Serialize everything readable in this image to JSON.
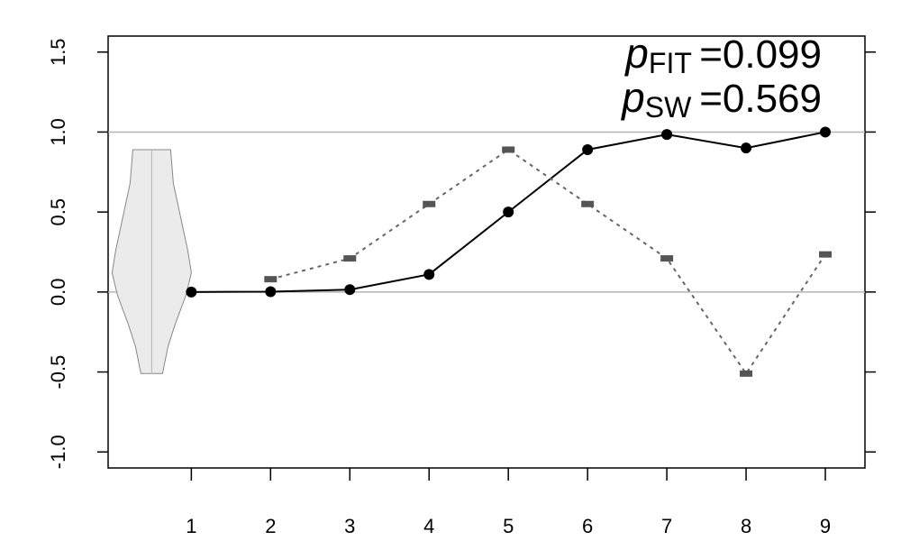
{
  "chart_data": {
    "type": "line",
    "x": [
      1,
      2,
      3,
      4,
      5,
      6,
      7,
      8,
      9
    ],
    "xlim": [
      -0.05,
      9.5
    ],
    "ylim": [
      -1.1,
      1.6
    ],
    "yticks": [
      -1.0,
      -0.5,
      0.0,
      0.5,
      1.0,
      1.5
    ],
    "ytick_labels": [
      "-1.0",
      "-0.5",
      "0.0",
      "0.5",
      "1.0",
      "1.5"
    ],
    "xticks": [
      1,
      2,
      3,
      4,
      5,
      6,
      7,
      8,
      9
    ],
    "xtick_labels": [
      "1",
      "2",
      "3",
      "4",
      "5",
      "6",
      "7",
      "8",
      "9"
    ],
    "reference_lines": [
      0.0,
      1.0
    ],
    "series": [
      {
        "style": "solid-line-with-points",
        "values": [
          0.0,
          0.002,
          0.015,
          0.11,
          0.5,
          0.89,
          0.985,
          0.9,
          1.0
        ],
        "color": "#000000"
      },
      {
        "style": "dotted-line-with-dash-markers",
        "x": [
          2,
          3,
          4,
          5,
          6,
          7,
          8,
          9
        ],
        "values": [
          0.08,
          0.21,
          0.55,
          0.89,
          0.55,
          0.21,
          -0.51,
          0.235
        ],
        "color": "#666666"
      }
    ],
    "violin": {
      "x_center": 0.5,
      "y_min": -0.51,
      "y_max": 0.89,
      "fill": "#ebebeb",
      "stroke": "#888888"
    },
    "annotations": [
      {
        "symbol": "p",
        "subscript": "FIT",
        "value": "=0.099"
      },
      {
        "symbol": "p",
        "subscript": "SW",
        "value": "=0.569"
      }
    ],
    "grid": false,
    "xlabel": "",
    "ylabel": "",
    "title": ""
  }
}
